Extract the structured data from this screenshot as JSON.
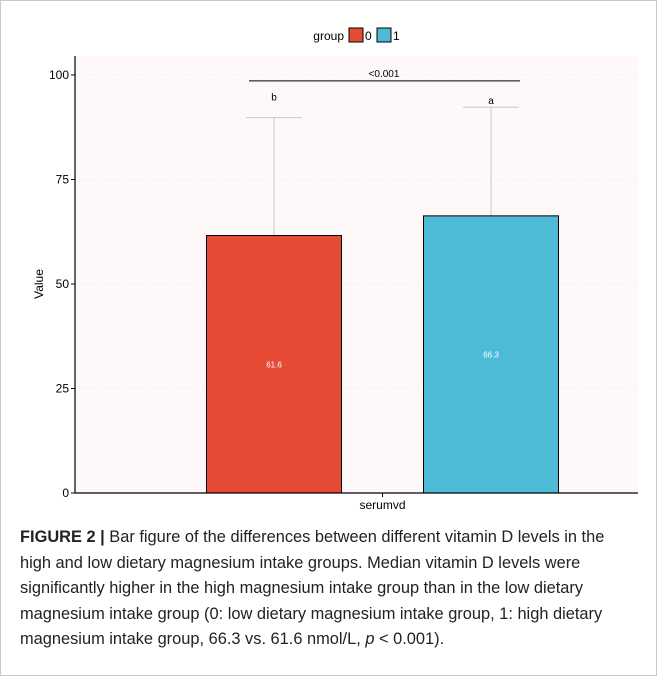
{
  "chart_data": {
    "type": "bar",
    "categories": [
      "serumvd"
    ],
    "xlabel": "serumvd",
    "ylabel": "Value",
    "ylim": [
      0,
      100
    ],
    "yticks": [
      0,
      25,
      50,
      75,
      100
    ],
    "legend": {
      "title": "group",
      "placement": "top",
      "entries": [
        "0",
        "1"
      ]
    },
    "series": [
      {
        "name": "0",
        "values": [
          61.6
        ],
        "label": "61.6",
        "error_upper": 89.8,
        "color": "#e64b35",
        "letter": "b"
      },
      {
        "name": "1",
        "values": [
          66.3
        ],
        "label": "66.3",
        "error_upper": 92.3,
        "color": "#4dbbd5",
        "letter": "a"
      }
    ],
    "significance": {
      "text": "<0.001",
      "level": 98.6
    },
    "panel_background": "#fff8f8"
  },
  "caption": {
    "label": "FIGURE 2 |",
    "text_before_p": " Bar figure of the differences between different vitamin D levels in the high and low dietary magnesium intake groups. Median vitamin D levels were significantly higher in the high magnesium intake group than in the low dietary magnesium intake group (0: low dietary magnesium intake group, 1: high dietary magnesium intake group, 66.3 vs. 61.6 nmol/L, ",
    "p_symbol": "p",
    "text_after_p": " < 0.001)."
  }
}
